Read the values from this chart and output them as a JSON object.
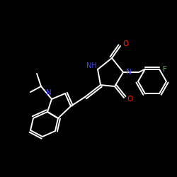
{
  "background_color": "#000000",
  "bond_color": "#ffffff",
  "atom_colors": {
    "N": "#4444ff",
    "O": "#ff2200",
    "F": "#44cc44"
  },
  "figsize": [
    2.5,
    2.5
  ],
  "dpi": 100,
  "xlim": [
    0,
    250
  ],
  "ylim": [
    0,
    250
  ]
}
